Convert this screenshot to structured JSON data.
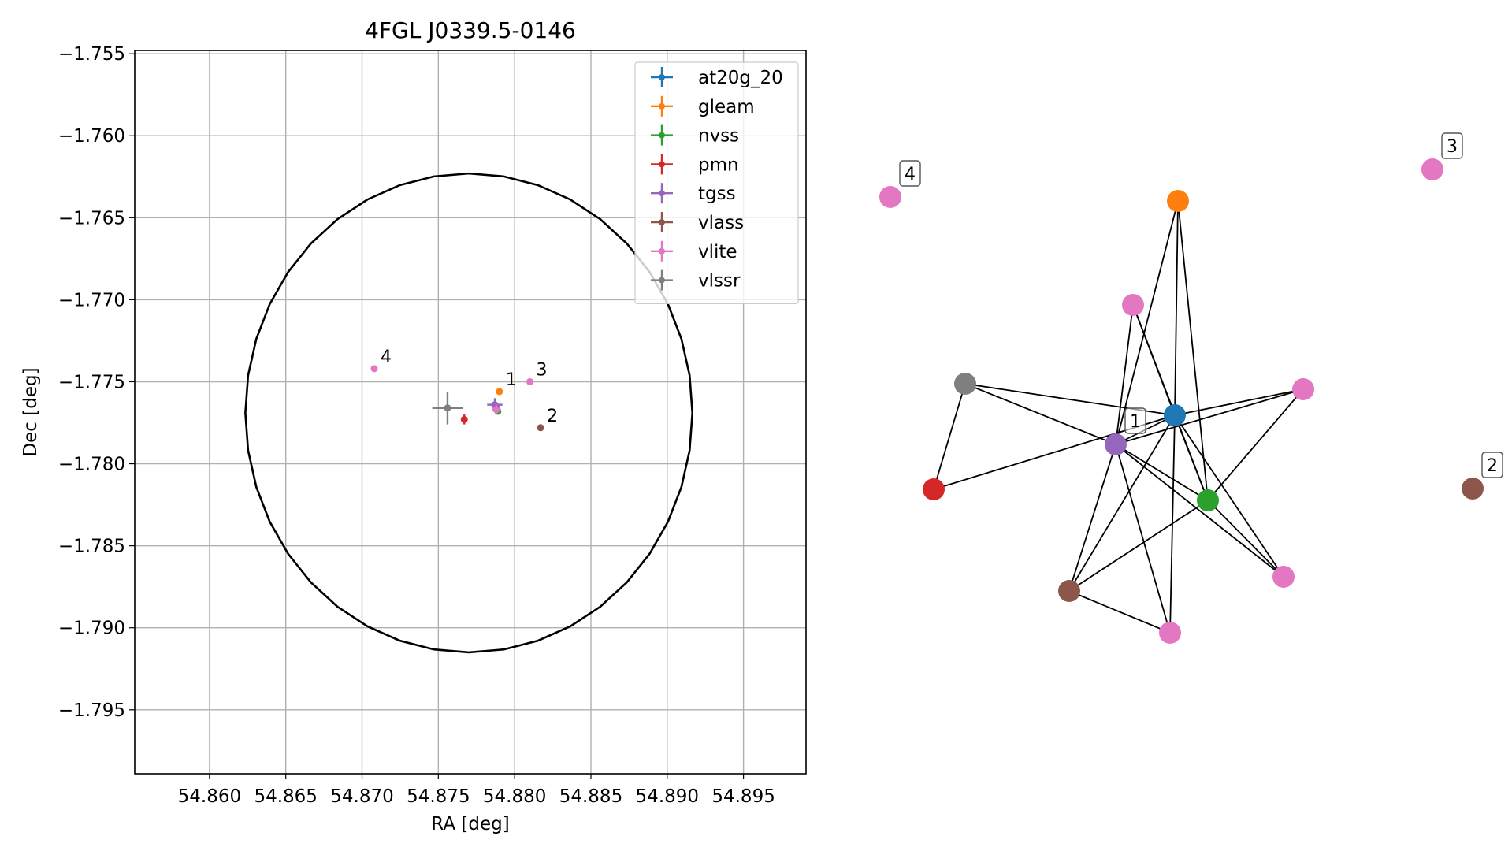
{
  "chart_data": [
    {
      "type": "scatter",
      "title": "4FGL J0339.5-0146",
      "xlabel": "RA [deg]",
      "ylabel": "Dec [deg]",
      "xlim": [
        54.8551,
        54.8991
      ],
      "ylim": [
        -1.7989,
        -1.7548
      ],
      "x_ticks": [
        "54.860",
        "54.865",
        "54.870",
        "54.875",
        "54.880",
        "54.885",
        "54.890",
        "54.895"
      ],
      "y_ticks": [
        "−1.755",
        "−1.760",
        "−1.765",
        "−1.770",
        "−1.775",
        "−1.780",
        "−1.785",
        "−1.790",
        "−1.795"
      ],
      "grid": true,
      "legend_position": "top-right",
      "ellipse": {
        "center_ra": 54.877,
        "center_dec": -1.7769,
        "radius_ra_deg": 0.01465,
        "radius_dec_deg": 0.0146,
        "color": "#000000"
      },
      "series": [
        {
          "name": "at20g_20",
          "color": "#1f77b4",
          "points": [
            {
              "ra": 54.8788,
              "dec": -1.7766,
              "err_ra": 0.0001,
              "err_dec": 0.0001,
              "label": ""
            }
          ]
        },
        {
          "name": "gleam",
          "color": "#ff7f0e",
          "points": [
            {
              "ra": 54.879,
              "dec": -1.7756,
              "err_ra": 0.0001,
              "err_dec": 0.0001,
              "label": "1"
            }
          ]
        },
        {
          "name": "nvss",
          "color": "#2ca02c",
          "points": [
            {
              "ra": 54.8789,
              "dec": -1.7768,
              "err_ra": 0.0002,
              "err_dec": 0.0001,
              "label": ""
            }
          ]
        },
        {
          "name": "pmn",
          "color": "#d62728",
          "points": [
            {
              "ra": 54.8767,
              "dec": -1.7773,
              "err_ra": 0.0002,
              "err_dec": 0.0003,
              "label": ""
            }
          ]
        },
        {
          "name": "tgss",
          "color": "#9467bd",
          "points": [
            {
              "ra": 54.8787,
              "dec": -1.7764,
              "err_ra": 0.0005,
              "err_dec": 0.0004,
              "label": ""
            }
          ]
        },
        {
          "name": "vlass",
          "color": "#8c564b",
          "points": [
            {
              "ra": 54.8817,
              "dec": -1.7778,
              "err_ra": 0.0001,
              "err_dec": 0.0001,
              "label": "2"
            }
          ]
        },
        {
          "name": "vlite",
          "color": "#e377c2",
          "points": [
            {
              "ra": 54.881,
              "dec": -1.775,
              "err_ra": 0.0001,
              "err_dec": 0.0001,
              "label": "3"
            },
            {
              "ra": 54.8708,
              "dec": -1.7742,
              "err_ra": 0.0001,
              "err_dec": 0.0001,
              "label": "4"
            },
            {
              "ra": 54.8788,
              "dec": -1.7767,
              "err_ra": 0.0003,
              "err_dec": 0.0003,
              "label": ""
            }
          ]
        },
        {
          "name": "vlssr",
          "color": "#7f7f7f",
          "points": [
            {
              "ra": 54.8756,
              "dec": -1.7766,
              "err_ra": 0.001,
              "err_dec": 0.001,
              "label": ""
            }
          ]
        }
      ]
    },
    {
      "type": "network",
      "nodes": [
        {
          "id": "at20g",
          "color": "#1f77b4",
          "label": ""
        },
        {
          "id": "gleam",
          "color": "#ff7f0e",
          "label": ""
        },
        {
          "id": "nvss",
          "color": "#2ca02c",
          "label": ""
        },
        {
          "id": "pmn",
          "color": "#d62728",
          "label": ""
        },
        {
          "id": "tgss",
          "color": "#9467bd",
          "label": "1"
        },
        {
          "id": "vlass_a",
          "color": "#8c564b",
          "label": ""
        },
        {
          "id": "vlass_b",
          "color": "#8c564b",
          "label": "2"
        },
        {
          "id": "vlssr",
          "color": "#7f7f7f",
          "label": ""
        },
        {
          "id": "vlite_a",
          "color": "#e377c2",
          "label": ""
        },
        {
          "id": "vlite_b",
          "color": "#e377c2",
          "label": ""
        },
        {
          "id": "vlite_c",
          "color": "#e377c2",
          "label": ""
        },
        {
          "id": "vlite_d",
          "color": "#e377c2",
          "label": ""
        },
        {
          "id": "vlite_e",
          "color": "#e377c2",
          "label": "3"
        },
        {
          "id": "vlite_f",
          "color": "#e377c2",
          "label": "4"
        }
      ],
      "edges": [
        [
          "gleam",
          "at20g"
        ],
        [
          "gleam",
          "tgss"
        ],
        [
          "gleam",
          "nvss"
        ],
        [
          "vlite_a",
          "tgss"
        ],
        [
          "vlite_a",
          "nvss"
        ],
        [
          "vlite_a",
          "at20g"
        ],
        [
          "vlssr",
          "at20g"
        ],
        [
          "vlssr",
          "tgss"
        ],
        [
          "vlssr",
          "pmn"
        ],
        [
          "pmn",
          "at20g"
        ],
        [
          "vlite_b",
          "at20g"
        ],
        [
          "vlite_b",
          "tgss"
        ],
        [
          "vlite_b",
          "vlass_a"
        ],
        [
          "tgss",
          "at20g"
        ],
        [
          "tgss",
          "nvss"
        ],
        [
          "tgss",
          "vlass_a"
        ],
        [
          "tgss",
          "vlite_c"
        ],
        [
          "tgss",
          "vlite_d"
        ],
        [
          "at20g",
          "nvss"
        ],
        [
          "at20g",
          "vlass_a"
        ],
        [
          "at20g",
          "vlite_c"
        ],
        [
          "at20g",
          "vlite_d"
        ],
        [
          "nvss",
          "vlass_a"
        ],
        [
          "nvss",
          "vlite_c"
        ],
        [
          "nvss",
          "vlite_d"
        ]
      ]
    }
  ]
}
